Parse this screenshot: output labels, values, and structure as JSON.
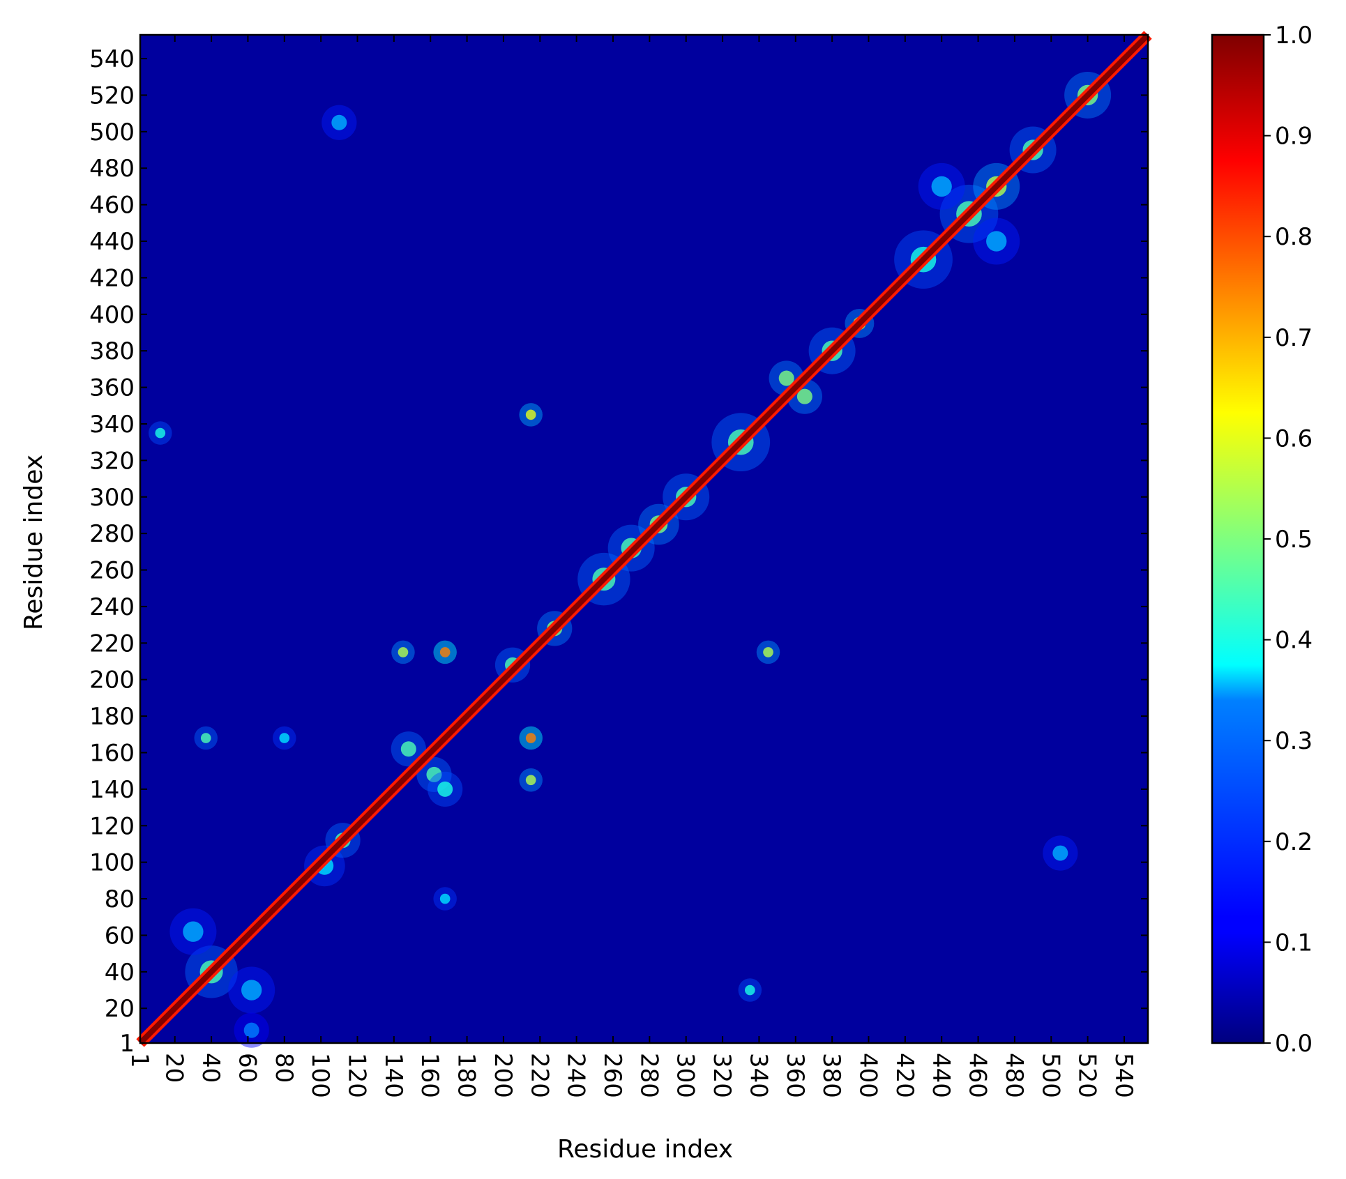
{
  "chart_data": {
    "type": "heatmap",
    "title": "",
    "xlabel": "Residue index",
    "ylabel": "Residue index",
    "xlim": [
      1,
      553
    ],
    "ylim": [
      1,
      553
    ],
    "x_ticks": [
      "1",
      "20",
      "40",
      "60",
      "80",
      "100",
      "120",
      "140",
      "160",
      "180",
      "200",
      "220",
      "240",
      "260",
      "280",
      "300",
      "320",
      "340",
      "360",
      "380",
      "400",
      "420",
      "440",
      "460",
      "480",
      "500",
      "520",
      "540"
    ],
    "y_ticks": [
      "1",
      "20",
      "40",
      "60",
      "80",
      "100",
      "120",
      "140",
      "160",
      "180",
      "200",
      "220",
      "240",
      "260",
      "280",
      "300",
      "320",
      "340",
      "360",
      "380",
      "400",
      "420",
      "440",
      "460",
      "480",
      "500",
      "520",
      "540"
    ],
    "colormap": "jet",
    "value_range": [
      0.0,
      1.0
    ],
    "colorbar_ticks": [
      "0.0",
      "0.1",
      "0.2",
      "0.3",
      "0.4",
      "0.5",
      "0.6",
      "0.7",
      "0.8",
      "0.9",
      "1.0"
    ],
    "background_value": 0.03,
    "diagonal_value": 1.0,
    "features": [
      {
        "x": 40,
        "y": 40,
        "value": 0.45,
        "spread": 9
      },
      {
        "x": 30,
        "y": 62,
        "value": 0.3,
        "spread": 8
      },
      {
        "x": 62,
        "y": 30,
        "value": 0.3,
        "spread": 8
      },
      {
        "x": 62,
        "y": 8,
        "value": 0.25,
        "spread": 6
      },
      {
        "x": 102,
        "y": 98,
        "value": 0.35,
        "spread": 7
      },
      {
        "x": 112,
        "y": 112,
        "value": 0.45,
        "spread": 6
      },
      {
        "x": 148,
        "y": 162,
        "value": 0.45,
        "spread": 6
      },
      {
        "x": 162,
        "y": 148,
        "value": 0.45,
        "spread": 6
      },
      {
        "x": 168,
        "y": 140,
        "value": 0.4,
        "spread": 6
      },
      {
        "x": 145,
        "y": 215,
        "value": 0.55,
        "spread": 4
      },
      {
        "x": 168,
        "y": 215,
        "value": 0.75,
        "spread": 4
      },
      {
        "x": 205,
        "y": 208,
        "value": 0.45,
        "spread": 6
      },
      {
        "x": 215,
        "y": 145,
        "value": 0.55,
        "spread": 4
      },
      {
        "x": 215,
        "y": 168,
        "value": 0.75,
        "spread": 4
      },
      {
        "x": 215,
        "y": 345,
        "value": 0.6,
        "spread": 4
      },
      {
        "x": 345,
        "y": 215,
        "value": 0.55,
        "spread": 4
      },
      {
        "x": 228,
        "y": 228,
        "value": 0.5,
        "spread": 6
      },
      {
        "x": 255,
        "y": 255,
        "value": 0.45,
        "spread": 9
      },
      {
        "x": 270,
        "y": 272,
        "value": 0.45,
        "spread": 8
      },
      {
        "x": 285,
        "y": 285,
        "value": 0.5,
        "spread": 7
      },
      {
        "x": 300,
        "y": 300,
        "value": 0.45,
        "spread": 8
      },
      {
        "x": 330,
        "y": 330,
        "value": 0.45,
        "spread": 10
      },
      {
        "x": 355,
        "y": 365,
        "value": 0.5,
        "spread": 6
      },
      {
        "x": 365,
        "y": 355,
        "value": 0.5,
        "spread": 6
      },
      {
        "x": 380,
        "y": 380,
        "value": 0.45,
        "spread": 8
      },
      {
        "x": 395,
        "y": 395,
        "value": 0.55,
        "spread": 5
      },
      {
        "x": 12,
        "y": 335,
        "value": 0.4,
        "spread": 4
      },
      {
        "x": 37,
        "y": 168,
        "value": 0.45,
        "spread": 4
      },
      {
        "x": 80,
        "y": 168,
        "value": 0.35,
        "spread": 4
      },
      {
        "x": 168,
        "y": 80,
        "value": 0.35,
        "spread": 4
      },
      {
        "x": 335,
        "y": 30,
        "value": 0.4,
        "spread": 4
      },
      {
        "x": 430,
        "y": 430,
        "value": 0.4,
        "spread": 10
      },
      {
        "x": 455,
        "y": 455,
        "value": 0.45,
        "spread": 10
      },
      {
        "x": 470,
        "y": 470,
        "value": 0.55,
        "spread": 8
      },
      {
        "x": 440,
        "y": 470,
        "value": 0.3,
        "spread": 8
      },
      {
        "x": 470,
        "y": 440,
        "value": 0.3,
        "spread": 8
      },
      {
        "x": 490,
        "y": 490,
        "value": 0.45,
        "spread": 8
      },
      {
        "x": 520,
        "y": 520,
        "value": 0.5,
        "spread": 8
      },
      {
        "x": 505,
        "y": 105,
        "value": 0.3,
        "spread": 6
      },
      {
        "x": 110,
        "y": 505,
        "value": 0.3,
        "spread": 6
      }
    ]
  }
}
